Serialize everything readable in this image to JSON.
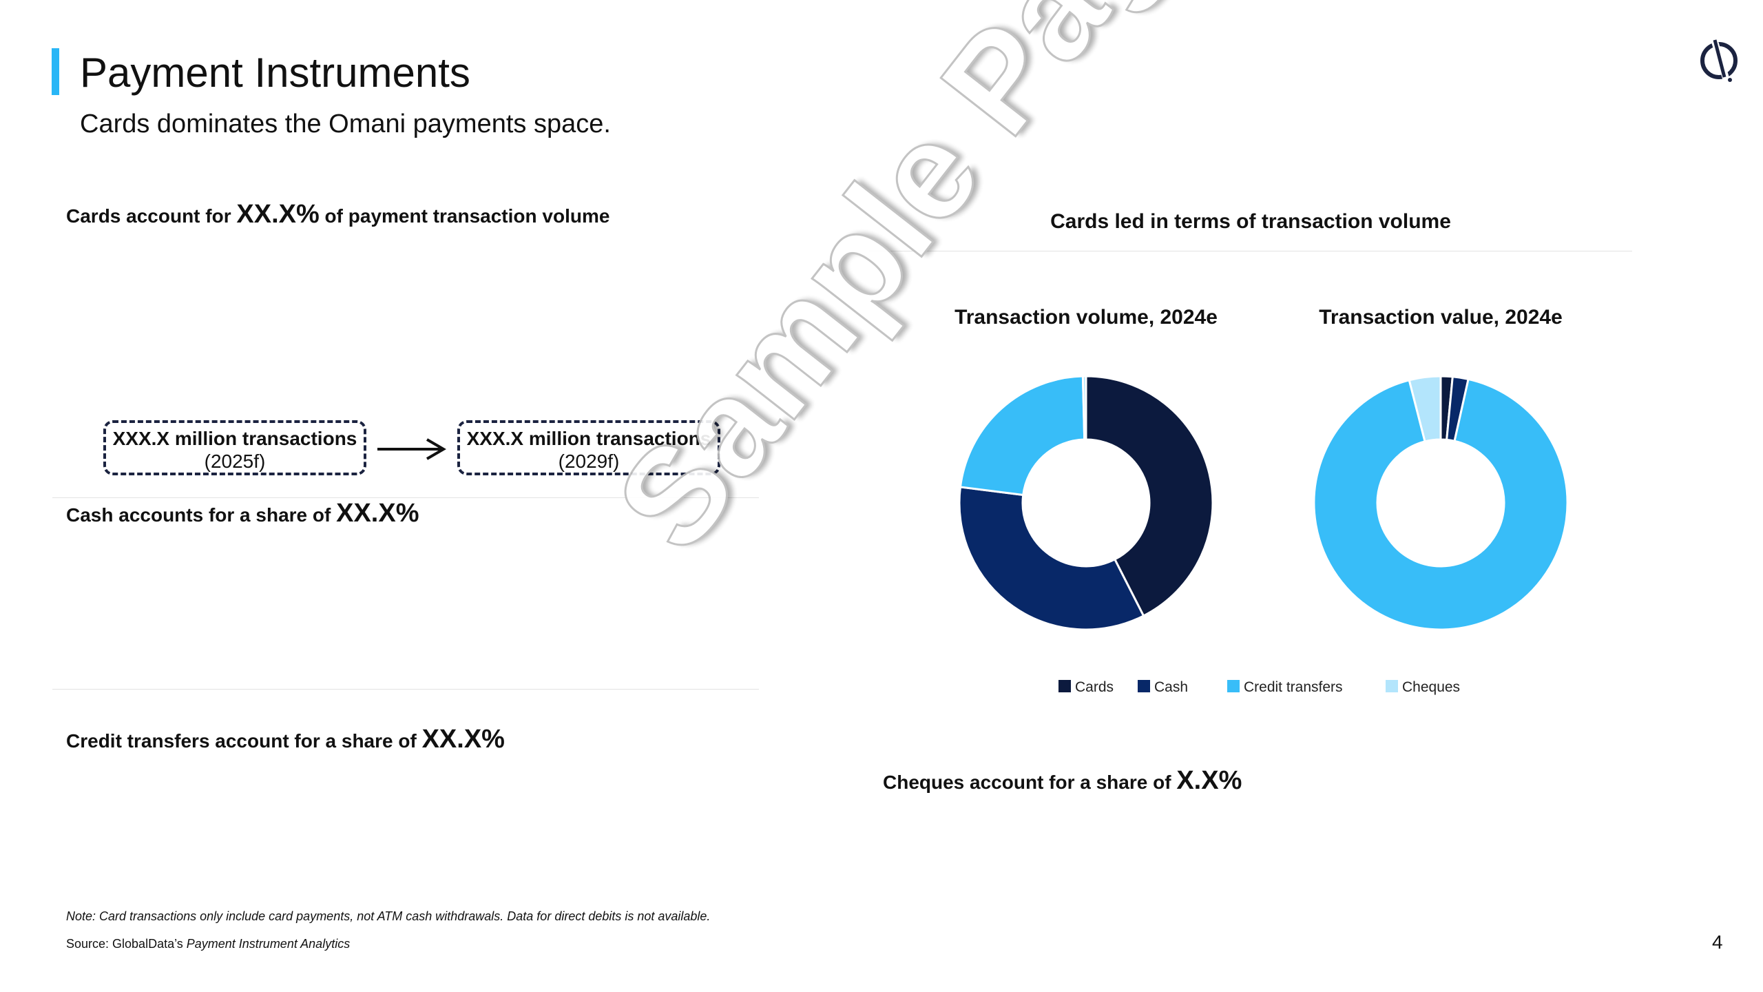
{
  "header": {
    "title": "Payment Instruments",
    "subtitle": "Cards dominates the Omani payments space."
  },
  "colors": {
    "accent": "#29b6f6",
    "cards": "#0c1a3e",
    "cash": "#082868",
    "credit_transfers": "#38bdf8",
    "cheques": "#b3e5fc"
  },
  "left": {
    "stat1_prefix": "Cards account for ",
    "stat1_value": "XX.X%",
    "stat1_suffix": " of payment transaction volume",
    "box1_line1": "XXX.X million transactions",
    "box1_line2": "(2025f)",
    "box2_line1": "XXX.X million transactions",
    "box2_line2": "(2029f)",
    "stat2_prefix": "Cash accounts for a share of ",
    "stat2_value": "XX.X%",
    "stat3_prefix": "Credit transfers account for a share of ",
    "stat3_value": "XX.X%"
  },
  "right": {
    "heading": "Cards led in terms of transaction volume",
    "stat4_prefix": "Cheques account for a share of ",
    "stat4_value": "X.X%"
  },
  "chart_data": [
    {
      "type": "pie",
      "title": "Transaction volume, 2024e",
      "categories": [
        "Cards",
        "Cash",
        "Credit transfers",
        "Cheques"
      ],
      "values": [
        42.5,
        34.5,
        22.6,
        0.4
      ]
    },
    {
      "type": "pie",
      "title": "Transaction value, 2024e",
      "categories": [
        "Cards",
        "Cash",
        "Credit transfers",
        "Cheques"
      ],
      "values": [
        1.5,
        2.0,
        92.5,
        4.0
      ]
    }
  ],
  "legend": {
    "placement": "bottom",
    "items": [
      "Cards",
      "Cash",
      "Credit transfers",
      "Cheques"
    ]
  },
  "watermark": "Sample Page",
  "footer": {
    "note": "Note: Card transactions only include card payments, not ATM cash withdrawals. Data for direct debits is not available.",
    "source_prefix": "Source: GlobalData’s ",
    "source_title": "Payment Instrument Analytics",
    "page_number": "4"
  }
}
